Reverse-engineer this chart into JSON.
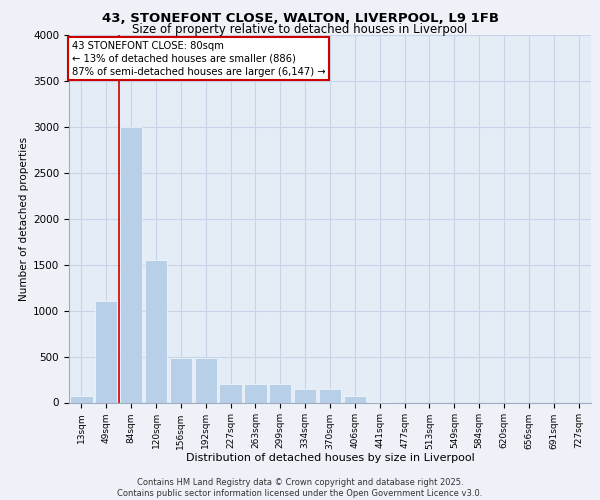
{
  "title_line1": "43, STONEFONT CLOSE, WALTON, LIVERPOOL, L9 1FB",
  "title_line2": "Size of property relative to detached houses in Liverpool",
  "xlabel": "Distribution of detached houses by size in Liverpool",
  "ylabel": "Number of detached properties",
  "categories": [
    "13sqm",
    "49sqm",
    "84sqm",
    "120sqm",
    "156sqm",
    "192sqm",
    "227sqm",
    "263sqm",
    "299sqm",
    "334sqm",
    "370sqm",
    "406sqm",
    "441sqm",
    "477sqm",
    "513sqm",
    "549sqm",
    "584sqm",
    "620sqm",
    "656sqm",
    "691sqm",
    "727sqm"
  ],
  "values": [
    75,
    1100,
    3000,
    1550,
    480,
    480,
    200,
    200,
    200,
    150,
    150,
    75,
    5,
    0,
    0,
    0,
    0,
    0,
    0,
    0,
    0
  ],
  "bar_color": "#b8cfe8",
  "grid_color": "#c8d4e8",
  "vline_color": "#cc0000",
  "annotation_title": "43 STONEFONT CLOSE: 80sqm",
  "annotation_line2": "← 13% of detached houses are smaller (886)",
  "annotation_line3": "87% of semi-detached houses are larger (6,147) →",
  "annotation_box_color": "#cc0000",
  "footer_line1": "Contains HM Land Registry data © Crown copyright and database right 2025.",
  "footer_line2": "Contains public sector information licensed under the Open Government Licence v3.0.",
  "ylim": [
    0,
    4000
  ],
  "yticks": [
    0,
    500,
    1000,
    1500,
    2000,
    2500,
    3000,
    3500,
    4000
  ],
  "bg_color": "#eef2f8",
  "plot_bg_color": "#e4ecf6"
}
